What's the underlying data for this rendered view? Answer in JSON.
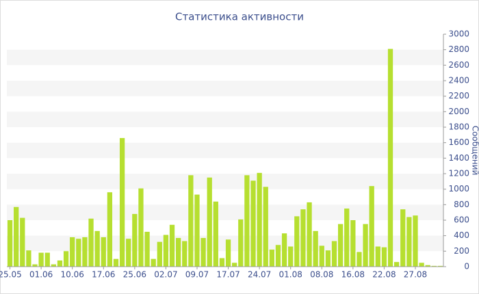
{
  "chart_data": {
    "type": "bar",
    "title": "Статистика активности",
    "y_label": "Сообщений",
    "categories": [
      "25.05",
      null,
      null,
      null,
      null,
      "01.06",
      null,
      null,
      null,
      null,
      "10.06",
      null,
      null,
      null,
      null,
      "17.06",
      null,
      null,
      null,
      null,
      "25.06",
      null,
      null,
      null,
      null,
      "02.07",
      null,
      null,
      null,
      null,
      "09.07",
      null,
      null,
      null,
      null,
      "17.07",
      null,
      null,
      null,
      null,
      "24.07",
      null,
      null,
      null,
      null,
      "01.08",
      null,
      null,
      null,
      null,
      "08.08",
      null,
      null,
      null,
      null,
      "16.08",
      null,
      null,
      null,
      null,
      "22.08",
      null,
      null,
      null,
      null,
      "27.08",
      null,
      null,
      null,
      null
    ],
    "values": [
      600,
      770,
      630,
      210,
      30,
      180,
      180,
      30,
      80,
      200,
      380,
      360,
      380,
      620,
      460,
      380,
      960,
      100,
      1660,
      360,
      680,
      1010,
      450,
      100,
      320,
      410,
      540,
      370,
      330,
      1180,
      930,
      370,
      1150,
      840,
      110,
      350,
      50,
      610,
      1180,
      1110,
      1210,
      1030,
      220,
      280,
      430,
      260,
      650,
      740,
      830,
      460,
      270,
      210,
      330,
      550,
      750,
      600,
      190,
      550,
      1040,
      260,
      250,
      2810,
      60,
      740,
      640,
      660,
      50,
      20,
      10,
      10
    ],
    "color": "#b6df30",
    "ylim": [
      0,
      3000
    ],
    "yticks": [
      0,
      200,
      400,
      600,
      800,
      1000,
      1200,
      1400,
      1600,
      1800,
      2000,
      2200,
      2400,
      2600,
      2800,
      3000
    ],
    "grid": true,
    "y_axis_side": "right"
  }
}
